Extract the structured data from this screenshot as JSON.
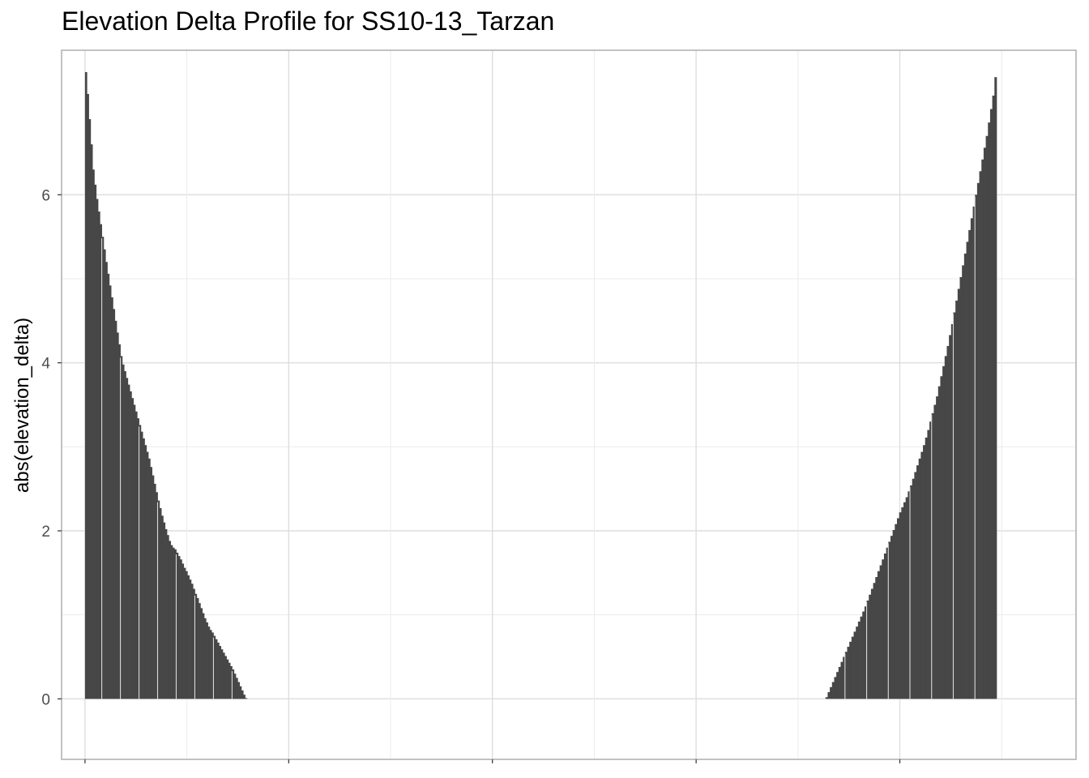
{
  "chart_data": {
    "type": "bar",
    "title": "Elevation Delta Profile for SS10-13_Tarzan",
    "xlabel": "",
    "ylabel": "abs(elevation_delta)",
    "ylim": [
      -0.72,
      7.72
    ],
    "y_ticks": [
      0,
      2,
      4,
      6
    ],
    "grid": true,
    "bar_color": "#474747",
    "gap_color": "#d9d9d9",
    "series": [
      {
        "segment": "descending",
        "x_start": 0,
        "x_end": 159,
        "values": [
          7.46,
          7.2,
          6.9,
          6.6,
          6.3,
          6.12,
          5.95,
          5.8,
          5.65,
          5.5,
          5.35,
          5.2,
          5.06,
          4.92,
          4.78,
          4.64,
          4.5,
          4.36,
          4.22,
          4.08,
          3.98,
          3.9,
          3.82,
          3.74,
          3.66,
          3.58,
          3.5,
          3.42,
          3.34,
          3.26,
          3.18,
          3.1,
          3.02,
          2.94,
          2.86,
          2.76,
          2.66,
          2.56,
          2.46,
          2.36,
          2.27,
          2.18,
          2.1,
          2.02,
          1.95,
          1.88,
          1.83,
          1.8,
          1.78,
          1.74,
          1.7,
          1.66,
          1.61,
          1.56,
          1.52,
          1.47,
          1.42,
          1.37,
          1.31,
          1.25,
          1.2,
          1.14,
          1.08,
          1.02,
          0.96,
          0.91,
          0.86,
          0.82,
          0.79,
          0.75,
          0.71,
          0.67,
          0.63,
          0.59,
          0.55,
          0.51,
          0.47,
          0.43,
          0.39,
          0.35,
          0.3,
          0.25,
          0.2,
          0.15,
          0.1,
          0.05,
          0.01
        ]
      },
      {
        "segment": "ascending",
        "x_start": 727,
        "x_end": 895,
        "values": [
          0.02,
          0.08,
          0.14,
          0.2,
          0.26,
          0.32,
          0.38,
          0.44,
          0.5,
          0.56,
          0.62,
          0.68,
          0.74,
          0.8,
          0.86,
          0.92,
          0.98,
          1.04,
          1.1,
          1.17,
          1.24,
          1.31,
          1.38,
          1.45,
          1.52,
          1.59,
          1.66,
          1.73,
          1.8,
          1.87,
          1.94,
          2.01,
          2.08,
          2.15,
          2.22,
          2.28,
          2.34,
          2.4,
          2.47,
          2.54,
          2.62,
          2.7,
          2.78,
          2.86,
          2.94,
          3.02,
          3.11,
          3.2,
          3.3,
          3.4,
          3.5,
          3.6,
          3.72,
          3.84,
          3.96,
          4.08,
          4.2,
          4.33,
          4.46,
          4.6,
          4.74,
          4.88,
          5.02,
          5.16,
          5.3,
          5.44,
          5.58,
          5.72,
          5.86,
          6.0,
          6.14,
          6.28,
          6.42,
          6.56,
          6.7,
          6.86,
          7.02,
          7.18,
          7.4
        ]
      }
    ]
  }
}
